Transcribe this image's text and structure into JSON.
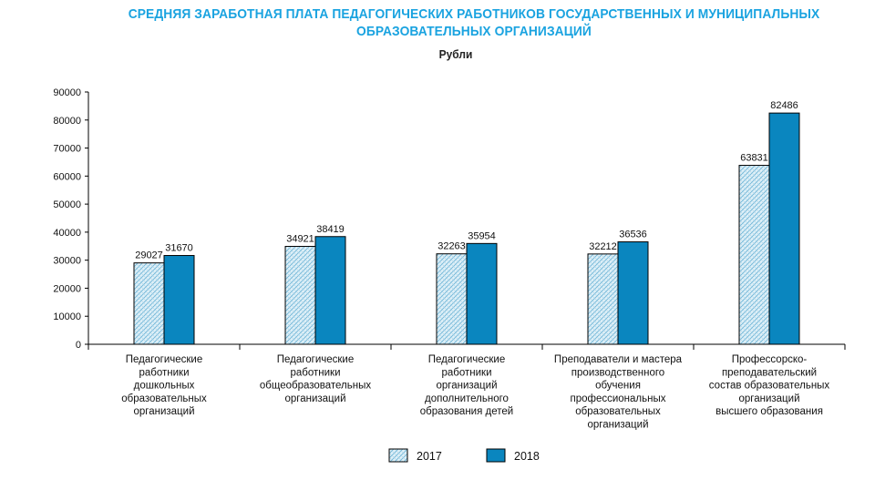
{
  "chart_data": {
    "type": "bar",
    "title_lines": [
      "СРЕДНЯЯ ЗАРАБОТНАЯ ПЛАТА ПЕДАГОГИЧЕСКИХ РАБОТНИКОВ ГОСУДАРСТВЕННЫХ И МУНИЦИПАЛЬНЫХ",
      "ОБРАЗОВАТЕЛЬНЫХ ОРГАНИЗАЦИЙ"
    ],
    "unit": "Рубли",
    "categories": [
      [
        "Педагогические",
        "работники",
        "дошкольных",
        "образовательных",
        "организаций"
      ],
      [
        "Педагогические",
        "работники",
        "общеобразовательных",
        "организаций"
      ],
      [
        "Педагогические",
        "работники",
        "организаций",
        "дополнительного",
        "образования детей"
      ],
      [
        "Преподаватели и мастера",
        "производственного",
        "обучения",
        "профессиональных",
        "образовательных",
        "организаций"
      ],
      [
        "Профессорско-",
        "преподавательский",
        "состав образовательных",
        "организаций",
        "высшего образования"
      ]
    ],
    "series": [
      {
        "name": "2017",
        "values": [
          29027,
          34921,
          32263,
          32212,
          63831
        ],
        "color": "#d8ecf5",
        "pattern": "hatched"
      },
      {
        "name": "2018",
        "values": [
          31670,
          38419,
          35954,
          36536,
          82486
        ],
        "color": "#0a86bf",
        "pattern": "solid"
      }
    ],
    "y_ticks": [
      "0",
      "10000",
      "20000",
      "30000",
      "40000",
      "50000",
      "60000",
      "70000",
      "80000",
      "90000"
    ],
    "ylim": [
      0,
      90000
    ],
    "grid": false,
    "legend_position": "bottom-center"
  }
}
